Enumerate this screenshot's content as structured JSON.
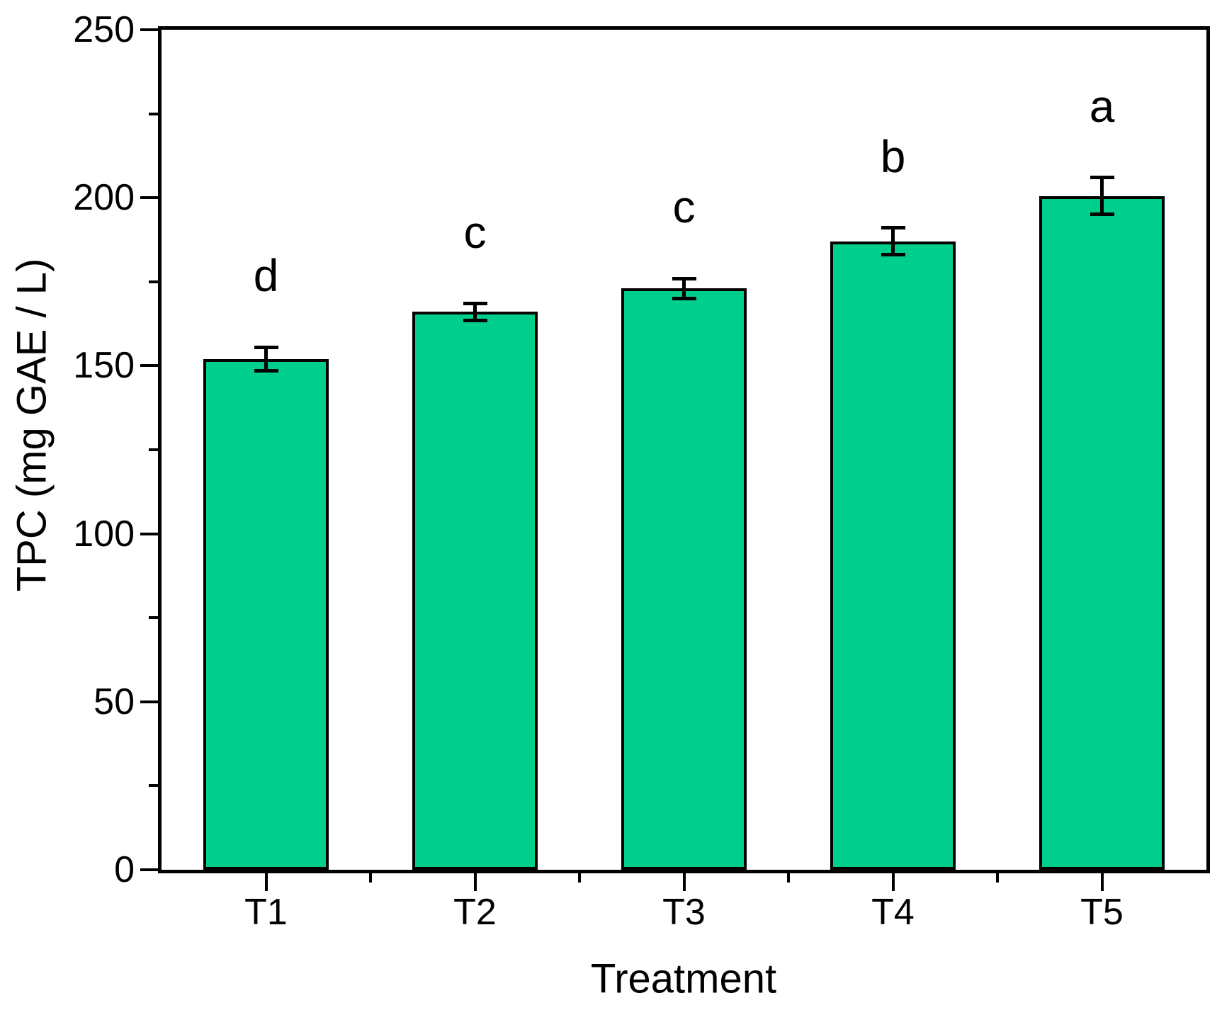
{
  "chart_data": {
    "type": "bar",
    "title": "",
    "xlabel": "Treatment",
    "ylabel": "TPC (mg GAE / L)",
    "categories": [
      "T1",
      "T2",
      "T3",
      "T4",
      "T5"
    ],
    "values": [
      152,
      166,
      173,
      187,
      200.5
    ],
    "errors": [
      3.5,
      2.5,
      3,
      4,
      5.5
    ],
    "sig_letters": [
      "d",
      "c",
      "c",
      "b",
      "a"
    ],
    "ylim": [
      0,
      250
    ],
    "ytick_major_step": 50,
    "ytick_minor_step": 25,
    "ytick_labels": [
      "0",
      "50",
      "100",
      "150",
      "200",
      "250"
    ],
    "grid": false,
    "legend": null,
    "bar_color": "#00CE8C",
    "bar_edge_color": "#000000",
    "axis_color": "#000000",
    "bar_width_fraction": 0.6
  }
}
